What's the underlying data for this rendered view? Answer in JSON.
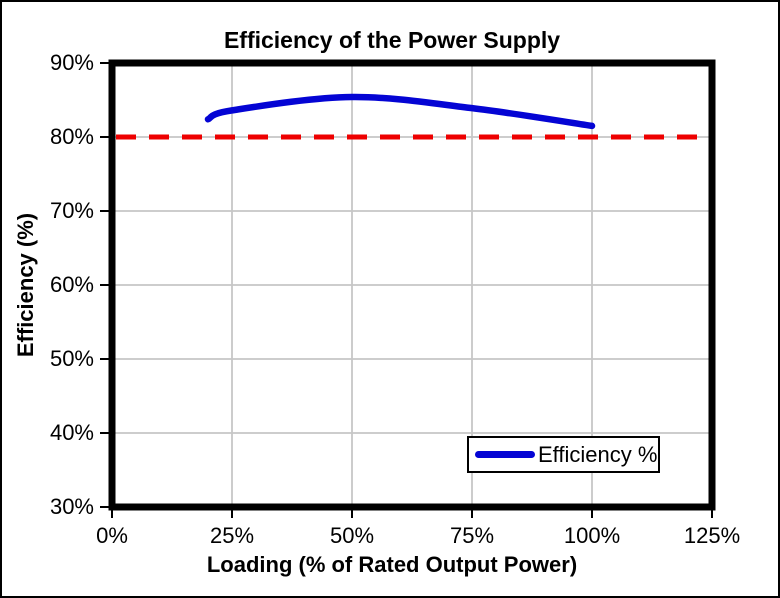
{
  "title": "Efficiency of the Power Supply",
  "axes": {
    "x": {
      "label": "Loading (% of Rated Output Power)",
      "tick_labels": [
        "0%",
        "25%",
        "50%",
        "75%",
        "100%",
        "125%"
      ]
    },
    "y": {
      "label": "Efficiency (%)",
      "tick_labels": [
        "90%",
        "80%",
        "70%",
        "60%",
        "50%",
        "40%",
        "30%"
      ]
    }
  },
  "legend": {
    "entries": [
      {
        "label": "Efficiency %",
        "swatch": "thick-blue-line"
      }
    ]
  },
  "colors": {
    "series": "#0404d4",
    "reference_line": "#ee0000",
    "gridline": "#c6c6c6",
    "axis": "#000000",
    "background": "#ffffff",
    "text": "#000000"
  },
  "chart_data": {
    "type": "line",
    "title": "Efficiency of the Power Supply",
    "xlabel": "Loading (% of Rated Output Power)",
    "ylabel": "Efficiency (%)",
    "xlim": [
      0,
      125
    ],
    "ylim": [
      30,
      90
    ],
    "x_ticks": [
      0,
      25,
      50,
      75,
      100,
      125
    ],
    "y_ticks": [
      90,
      80,
      70,
      60,
      50,
      40,
      30
    ],
    "grid": true,
    "legend_position": "inside-bottom-right",
    "series": [
      {
        "name": "Efficiency %",
        "type": "smooth-line",
        "color": "#0404d4",
        "width": 6.5,
        "x": [
          20,
          25,
          50,
          75,
          100
        ],
        "y": [
          82.4,
          83.6,
          85.4,
          83.9,
          81.5
        ]
      }
    ],
    "reference_line": {
      "y": 80,
      "style": "dashed",
      "color": "#ee0000"
    }
  }
}
